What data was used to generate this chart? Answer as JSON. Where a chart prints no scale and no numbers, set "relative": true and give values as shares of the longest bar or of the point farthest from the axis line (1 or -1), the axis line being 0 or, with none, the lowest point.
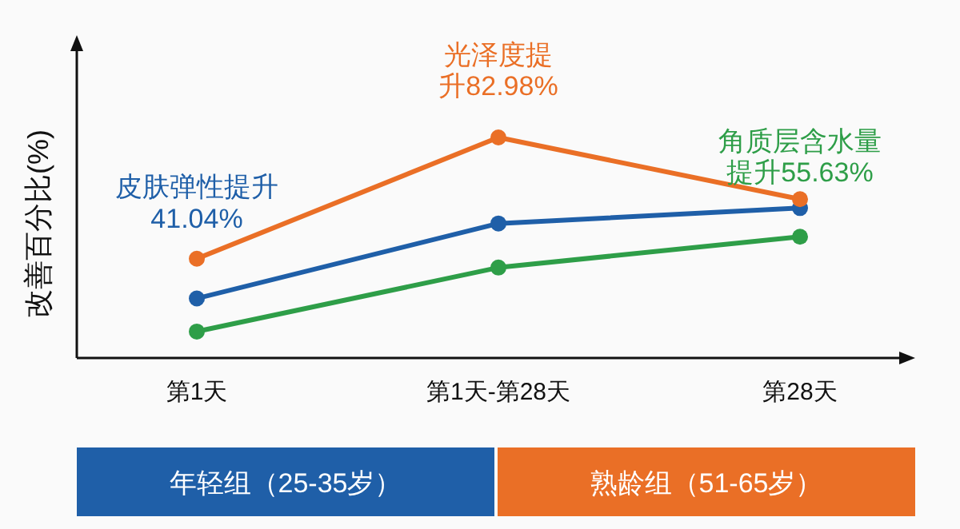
{
  "chart_data": {
    "type": "line",
    "relative": true,
    "ylabel": "改善百分比(%)",
    "categories": [
      "第1天",
      "第1天-第28天",
      "第28天"
    ],
    "marker": "circle",
    "line_style": "solid",
    "series": [
      {
        "name": "皮肤弹性提升41.04%",
        "color": "#1f5fa8",
        "values": [
          0.27,
          0.61,
          0.68
        ]
      },
      {
        "name": "光泽度提升82.98%",
        "color": "#ea6f26",
        "values": [
          0.45,
          1,
          0.72
        ]
      },
      {
        "name": "角质层含水量提升55.63%",
        "color": "#2e9e48",
        "values": [
          0.12,
          0.41,
          0.55
        ]
      }
    ],
    "annotations": [
      "年轻组（25-35岁）",
      "熟龄组（51-65岁）"
    ]
  }
}
